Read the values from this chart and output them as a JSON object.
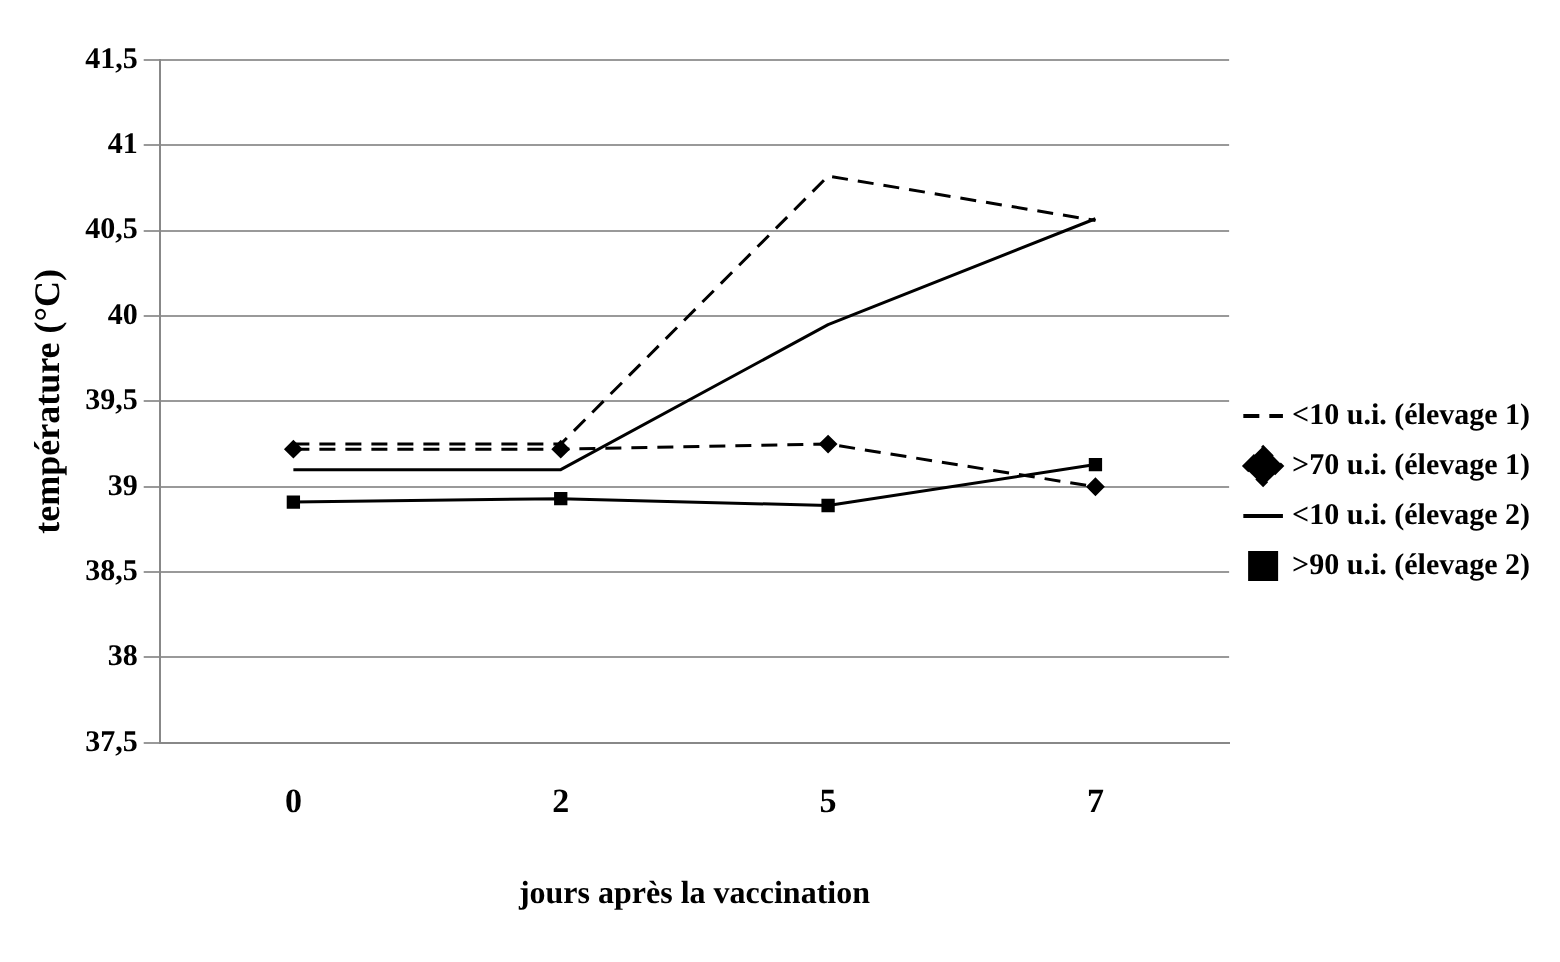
{
  "chart_data": {
    "type": "line",
    "xlabel": "jours après la vaccination",
    "ylabel": "température (°C)",
    "categories": [
      "0",
      "2",
      "5",
      "7"
    ],
    "series": [
      {
        "name": "<10 u.i. (élevage 1)",
        "color": "#000000",
        "line_style": "dashed",
        "marker": "none",
        "values": [
          39.25,
          39.25,
          40.82,
          40.56
        ]
      },
      {
        "name": ">70 u.i. (élevage 1)",
        "color": "#000000",
        "line_style": "dashed",
        "marker": "diamond",
        "values": [
          39.22,
          39.22,
          39.25,
          39.0
        ]
      },
      {
        "name": "<10 u.i. (élevage 2)",
        "color": "#000000",
        "line_style": "solid",
        "marker": "none",
        "values": [
          39.1,
          39.1,
          39.95,
          40.57
        ]
      },
      {
        "name": ">90 u.i. (élevage 2)",
        "color": "#000000",
        "line_style": "solid",
        "marker": "square",
        "values": [
          38.91,
          38.93,
          38.89,
          39.13
        ]
      }
    ],
    "ylim": [
      37.5,
      41.5
    ],
    "yticks": [
      {
        "value": 37.5,
        "label": "37,5"
      },
      {
        "value": 38,
        "label": "38"
      },
      {
        "value": 38.5,
        "label": "38,5"
      },
      {
        "value": 39,
        "label": "39"
      },
      {
        "value": 39.5,
        "label": "39,5"
      },
      {
        "value": 40,
        "label": "40"
      },
      {
        "value": 40.5,
        "label": "40,5"
      },
      {
        "value": 41,
        "label": "41"
      },
      {
        "value": 41.5,
        "label": "41,5"
      }
    ],
    "grid": "y",
    "legend": "right"
  }
}
